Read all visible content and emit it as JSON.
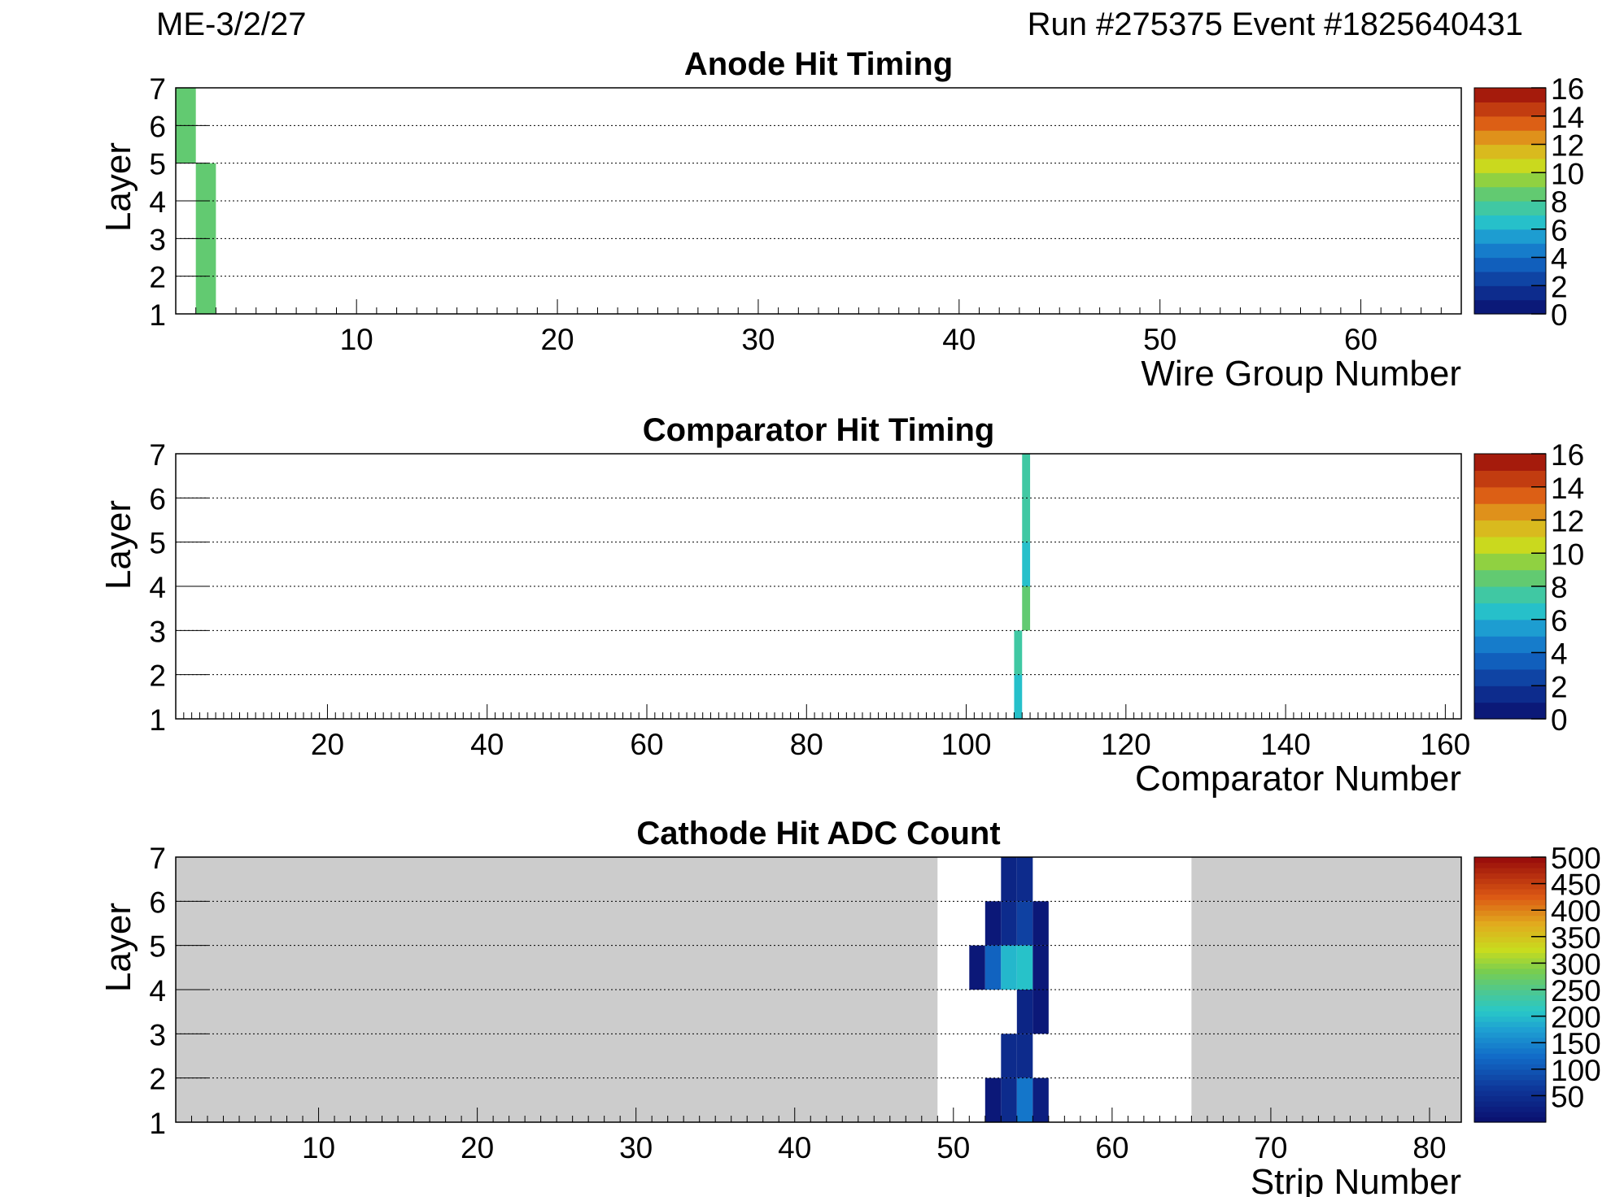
{
  "header": {
    "chamber": "ME-3/2/27",
    "run_event": "Run #275375  Event #1825640431"
  },
  "chart_data": [
    {
      "type": "heatmap",
      "title": "Anode Hit Timing",
      "xlabel": "Wire Group Number",
      "ylabel": "Layer",
      "xlim": [
        1,
        65
      ],
      "ylim": [
        1,
        7
      ],
      "xticks": [
        10,
        20,
        30,
        40,
        50,
        60
      ],
      "yticks": [
        1,
        2,
        3,
        4,
        5,
        6,
        7
      ],
      "grid": "horizontal dotted",
      "zlim": [
        0,
        16
      ],
      "zticks": [
        0,
        2,
        4,
        6,
        8,
        10,
        12,
        14,
        16
      ],
      "palette_levels": 16,
      "cells": [
        {
          "x0": 1,
          "x1": 2,
          "y0": 5,
          "y1": 7,
          "z": 8
        },
        {
          "x0": 2,
          "x1": 3,
          "y0": 1,
          "y1": 5,
          "z": 8
        }
      ]
    },
    {
      "type": "heatmap",
      "title": "Comparator Hit Timing",
      "xlabel": "Comparator Number",
      "ylabel": "Layer",
      "xlim": [
        1,
        162
      ],
      "ylim": [
        1,
        7
      ],
      "xticks": [
        20,
        40,
        60,
        80,
        100,
        120,
        140,
        160
      ],
      "yticks": [
        1,
        2,
        3,
        4,
        5,
        6,
        7
      ],
      "grid": "horizontal dotted",
      "zlim": [
        0,
        16
      ],
      "zticks": [
        0,
        2,
        4,
        6,
        8,
        10,
        12,
        14,
        16
      ],
      "palette_levels": 16,
      "cells": [
        {
          "x0": 107,
          "x1": 108,
          "y0": 6,
          "y1": 7,
          "z": 7
        },
        {
          "x0": 107,
          "x1": 108,
          "y0": 5,
          "y1": 6,
          "z": 7
        },
        {
          "x0": 107,
          "x1": 108,
          "y0": 4,
          "y1": 5,
          "z": 6
        },
        {
          "x0": 107,
          "x1": 108,
          "y0": 3,
          "y1": 4,
          "z": 8
        },
        {
          "x0": 106,
          "x1": 107,
          "y0": 2,
          "y1": 3,
          "z": 7
        },
        {
          "x0": 106,
          "x1": 107,
          "y0": 1,
          "y1": 2,
          "z": 6
        }
      ]
    },
    {
      "type": "heatmap",
      "title": "Cathode Hit ADC Count",
      "xlabel": "Strip Number",
      "ylabel": "Layer",
      "xlim": [
        1,
        82
      ],
      "ylim": [
        1,
        7
      ],
      "xticks": [
        10,
        20,
        30,
        40,
        50,
        60,
        70,
        80
      ],
      "yticks": [
        1,
        2,
        3,
        4,
        5,
        6,
        7
      ],
      "grid": "horizontal dotted",
      "zlim": [
        0,
        500
      ],
      "zticks": [
        50,
        100,
        150,
        200,
        250,
        300,
        350,
        400,
        450,
        500
      ],
      "palette_levels": 50,
      "background_color": "#cccccc",
      "readout_window": [
        49,
        65
      ],
      "cells": [
        {
          "x0": 53,
          "x1": 54,
          "y0": 6,
          "y1": 7,
          "z": 30
        },
        {
          "x0": 54,
          "x1": 55,
          "y0": 6,
          "y1": 7,
          "z": 40
        },
        {
          "x0": 52,
          "x1": 53,
          "y0": 5,
          "y1": 6,
          "z": 15
        },
        {
          "x0": 53,
          "x1": 54,
          "y0": 5,
          "y1": 6,
          "z": 45
        },
        {
          "x0": 54,
          "x1": 55,
          "y0": 5,
          "y1": 6,
          "z": 70
        },
        {
          "x0": 55,
          "x1": 56,
          "y0": 5,
          "y1": 6,
          "z": 15
        },
        {
          "x0": 51,
          "x1": 52,
          "y0": 4,
          "y1": 5,
          "z": 15
        },
        {
          "x0": 52,
          "x1": 53,
          "y0": 4,
          "y1": 5,
          "z": 110
        },
        {
          "x0": 53,
          "x1": 54,
          "y0": 4,
          "y1": 5,
          "z": 190
        },
        {
          "x0": 54,
          "x1": 55,
          "y0": 4,
          "y1": 5,
          "z": 200
        },
        {
          "x0": 55,
          "x1": 56,
          "y0": 4,
          "y1": 5,
          "z": 15
        },
        {
          "x0": 54,
          "x1": 55,
          "y0": 3,
          "y1": 4,
          "z": 35
        },
        {
          "x0": 55,
          "x1": 56,
          "y0": 3,
          "y1": 4,
          "z": 12
        },
        {
          "x0": 53,
          "x1": 54,
          "y0": 2,
          "y1": 3,
          "z": 40
        },
        {
          "x0": 54,
          "x1": 55,
          "y0": 2,
          "y1": 3,
          "z": 40
        },
        {
          "x0": 53,
          "x1": 54,
          "y0": 1,
          "y1": 2,
          "z": 40
        },
        {
          "x0": 54,
          "x1": 55,
          "y0": 1,
          "y1": 2,
          "z": 130
        },
        {
          "x0": 55,
          "x1": 56,
          "y0": 1,
          "y1": 2,
          "z": 20
        },
        {
          "x0": 52,
          "x1": 53,
          "y0": 1,
          "y1": 2,
          "z": 15
        }
      ]
    }
  ]
}
